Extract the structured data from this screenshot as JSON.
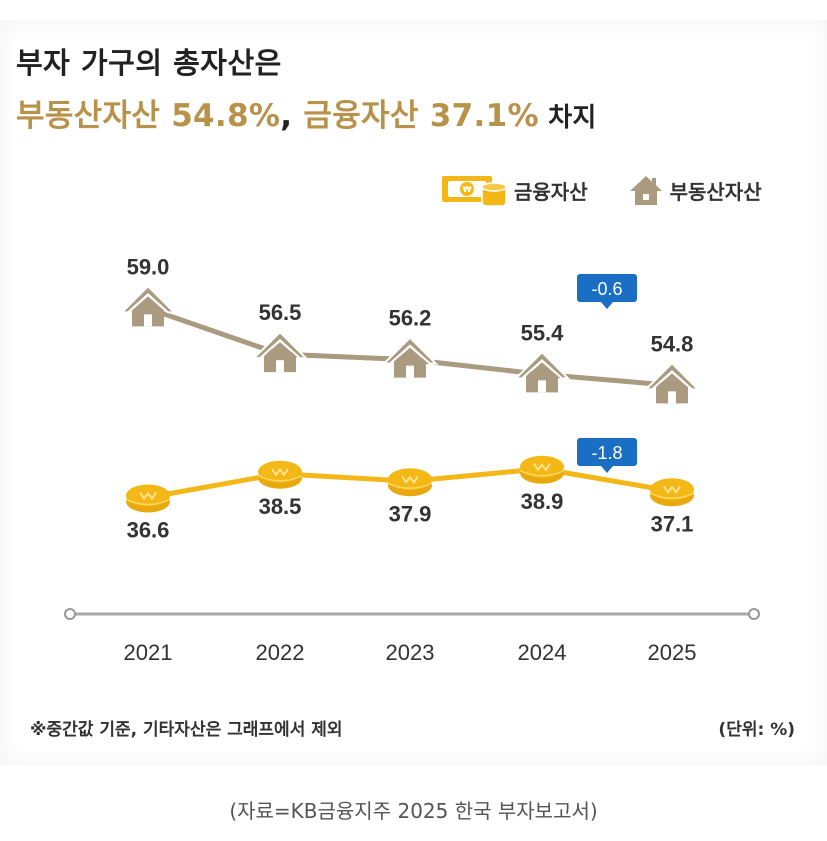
{
  "header": {
    "title_line1": "부자 가구의 총자산은",
    "title_line2_part1": "부동산자산 54.8%",
    "title_line2_sep": ", ",
    "title_line2_part2": "금융자산 37.1%",
    "title_line2_part3": " 차지"
  },
  "legend": {
    "items": [
      {
        "label": "금융자산",
        "icon": "money-coin-icon",
        "color": "#f3b816"
      },
      {
        "label": "부동산자산",
        "icon": "house-icon",
        "color": "#a99a80"
      }
    ]
  },
  "footer": {
    "note": "※중간값 기준, 기타자산은 그래프에서 제외",
    "unit": "(단위: %)",
    "source": "(자료=KB금융지주 2025 한국 부자보고서)"
  },
  "chart_data": {
    "type": "line",
    "title": "부자 가구의 총자산은 부동산자산 54.8%, 금융자산 37.1% 차지",
    "xlabel": "",
    "ylabel": "",
    "unit": "%",
    "categories": [
      "2021",
      "2022",
      "2023",
      "2024",
      "2025"
    ],
    "series": [
      {
        "name": "부동산자산",
        "color": "#a99a80",
        "marker": "house",
        "values": [
          59.0,
          56.5,
          56.2,
          55.4,
          54.8
        ],
        "labels": [
          "59.0",
          "56.5",
          "56.2",
          "55.4",
          "54.8"
        ]
      },
      {
        "name": "금융자산",
        "color": "#f3b816",
        "marker": "coin",
        "values": [
          36.6,
          38.5,
          37.9,
          38.9,
          37.1
        ],
        "labels": [
          "36.6",
          "38.5",
          "37.9",
          "38.9",
          "37.1"
        ]
      }
    ],
    "annotations": [
      {
        "series": "부동산자산",
        "between": [
          "2024",
          "2025"
        ],
        "text": "-0.6",
        "color": "#1a6fc4"
      },
      {
        "series": "금융자산",
        "between": [
          "2024",
          "2025"
        ],
        "text": "-1.8",
        "color": "#1a6fc4"
      }
    ],
    "legend_position": "top-right",
    "grid": false
  }
}
